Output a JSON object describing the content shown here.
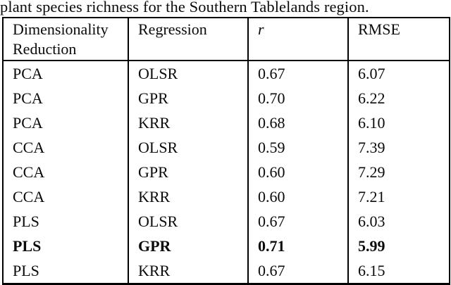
{
  "caption": {
    "text": "plant species richness for the Southern Tablelands region."
  },
  "table": {
    "columns": [
      "Dimensionality Reduction",
      "Regression",
      "r",
      "RMSE"
    ],
    "rows": [
      [
        "PCA",
        "OLSR",
        "0.67",
        "6.07"
      ],
      [
        "PCA",
        "GPR",
        "0.70",
        "6.22"
      ],
      [
        "PCA",
        "KRR",
        "0.68",
        "6.10"
      ],
      [
        "CCA",
        "OLSR",
        "0.59",
        "7.39"
      ],
      [
        "CCA",
        "GPR",
        "0.60",
        "7.29"
      ],
      [
        "CCA",
        "KRR",
        "0.60",
        "7.21"
      ],
      [
        "PLS",
        "OLSR",
        "0.67",
        "6.03"
      ],
      [
        "PLS",
        "GPR",
        "0.71",
        "5.99"
      ],
      [
        "PLS",
        "KRR",
        "0.67",
        "6.15"
      ]
    ],
    "bold_row_index": 7
  }
}
